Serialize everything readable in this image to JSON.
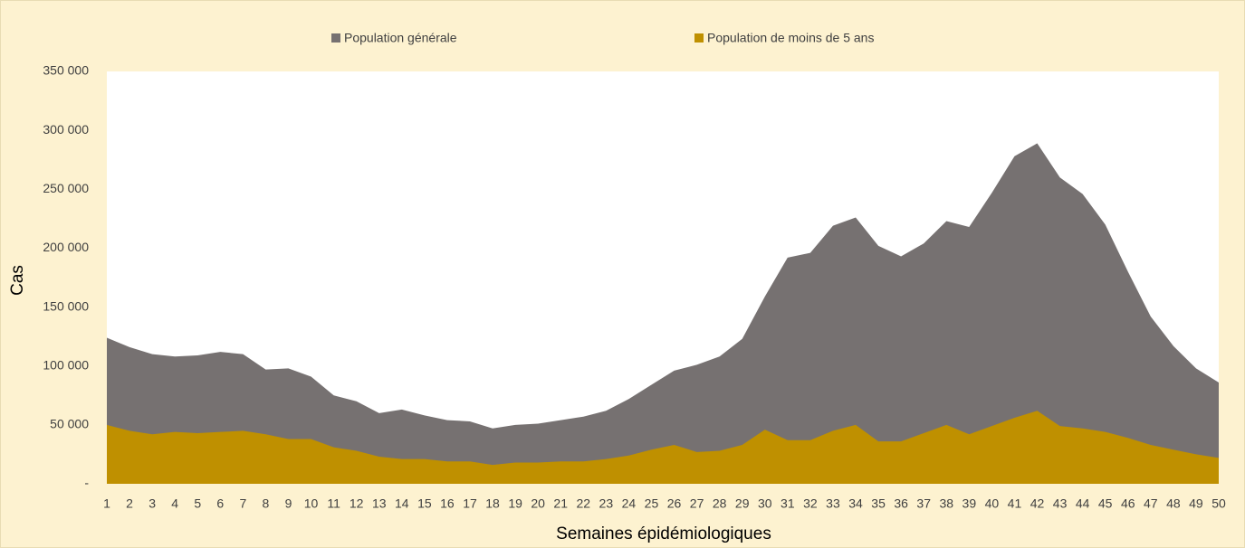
{
  "chart_data": {
    "type": "area",
    "x_label": "Semaines épidémiologiques",
    "y_label": "Cas",
    "categories": [
      1,
      2,
      3,
      4,
      5,
      6,
      7,
      8,
      9,
      10,
      11,
      12,
      13,
      14,
      15,
      16,
      17,
      18,
      19,
      20,
      21,
      22,
      23,
      24,
      25,
      26,
      27,
      28,
      29,
      30,
      31,
      32,
      33,
      34,
      35,
      36,
      37,
      38,
      39,
      40,
      41,
      42,
      43,
      44,
      45,
      46,
      47,
      48,
      49,
      50
    ],
    "series": [
      {
        "name": "Population générale",
        "color": "#767171",
        "values": [
          124000,
          116000,
          110000,
          108000,
          109000,
          112000,
          110000,
          97000,
          98000,
          91000,
          75000,
          70000,
          60000,
          63000,
          58000,
          54000,
          53000,
          47000,
          50000,
          51000,
          54000,
          57000,
          62000,
          72000,
          84000,
          96000,
          101000,
          108000,
          123000,
          159000,
          192000,
          196000,
          219000,
          226000,
          202000,
          193000,
          204000,
          223000,
          218000,
          247000,
          278000,
          289000,
          260000,
          246000,
          220000,
          180000,
          142000,
          117000,
          98000,
          86000
        ]
      },
      {
        "name": "Population de moins de 5 ans",
        "color": "#bf9000",
        "values": [
          50000,
          45000,
          42000,
          44000,
          43000,
          44000,
          45000,
          42000,
          38000,
          38000,
          31000,
          28000,
          23000,
          21000,
          21000,
          19000,
          19000,
          16000,
          18000,
          18000,
          19000,
          19000,
          21000,
          24000,
          29000,
          33000,
          27000,
          28000,
          33000,
          46000,
          37000,
          37000,
          45000,
          50000,
          36000,
          36000,
          43000,
          50000,
          42000,
          49000,
          56000,
          62000,
          49000,
          47000,
          44000,
          39000,
          33000,
          29000,
          25000,
          22000
        ]
      }
    ],
    "ylim": [
      0,
      350000
    ],
    "yticks": [
      {
        "value": 0,
        "label": "-"
      },
      {
        "value": 50000,
        "label": "50 000"
      },
      {
        "value": 100000,
        "label": "100 000"
      },
      {
        "value": 150000,
        "label": "150 000"
      },
      {
        "value": 200000,
        "label": "200 000"
      },
      {
        "value": 250000,
        "label": "250 000"
      },
      {
        "value": 300000,
        "label": "300 000"
      },
      {
        "value": 350000,
        "label": "350 000"
      }
    ],
    "legend": "top"
  }
}
